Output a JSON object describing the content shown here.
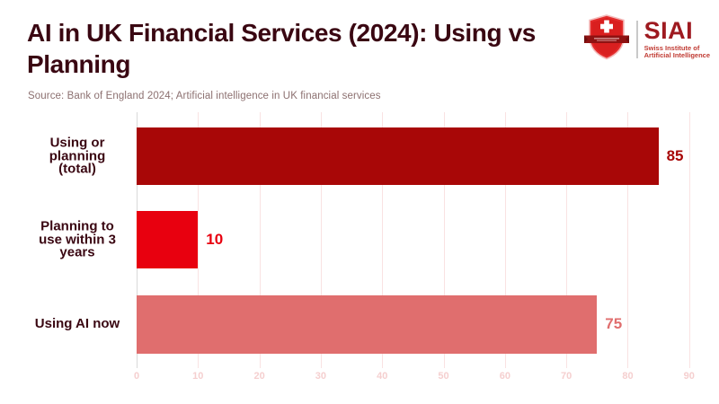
{
  "header": {
    "title_lines": [
      "AI in UK Financial Services (2024): Using vs",
      "Planning"
    ],
    "source": "Source: Bank of England 2024; Artificial intelligence in UK financial services"
  },
  "logo": {
    "acronym": "SIAI",
    "org_line1": "Swiss Institute of",
    "org_line2": "Artificial Intelligence",
    "shield_icon": "swiss-shield-icon",
    "acronym_color": "#9e1a20",
    "shield_color": "#e32b2b",
    "banner_color": "#8f1212"
  },
  "chart_data": {
    "type": "bar",
    "orientation": "horizontal",
    "title": "AI in UK Financial Services (2024): Using vs Planning",
    "source": "Source: Bank of England 2024; Artificial intelligence in UK financial services",
    "categories": [
      "Using or planning (total)",
      "Planning to use within 3 years",
      "Using AI now"
    ],
    "values": [
      85,
      10,
      75
    ],
    "bar_colors": [
      "#a80707",
      "#e8000f",
      "#e06e6e"
    ],
    "value_labels_shown": true,
    "xlim": [
      0,
      90
    ],
    "x_ticks": [
      0,
      10,
      20,
      30,
      40,
      50,
      60,
      70,
      80,
      90
    ],
    "grid": true,
    "legend": false,
    "colors": {
      "title_text": "#3a0712",
      "category_text": "#3a0712",
      "source_text": "#8c7070",
      "grid_line": "#f9e2e2",
      "zero_line": "#d9d9d9",
      "tick_label": "#f5cfcf",
      "background": "#ffffff"
    }
  }
}
